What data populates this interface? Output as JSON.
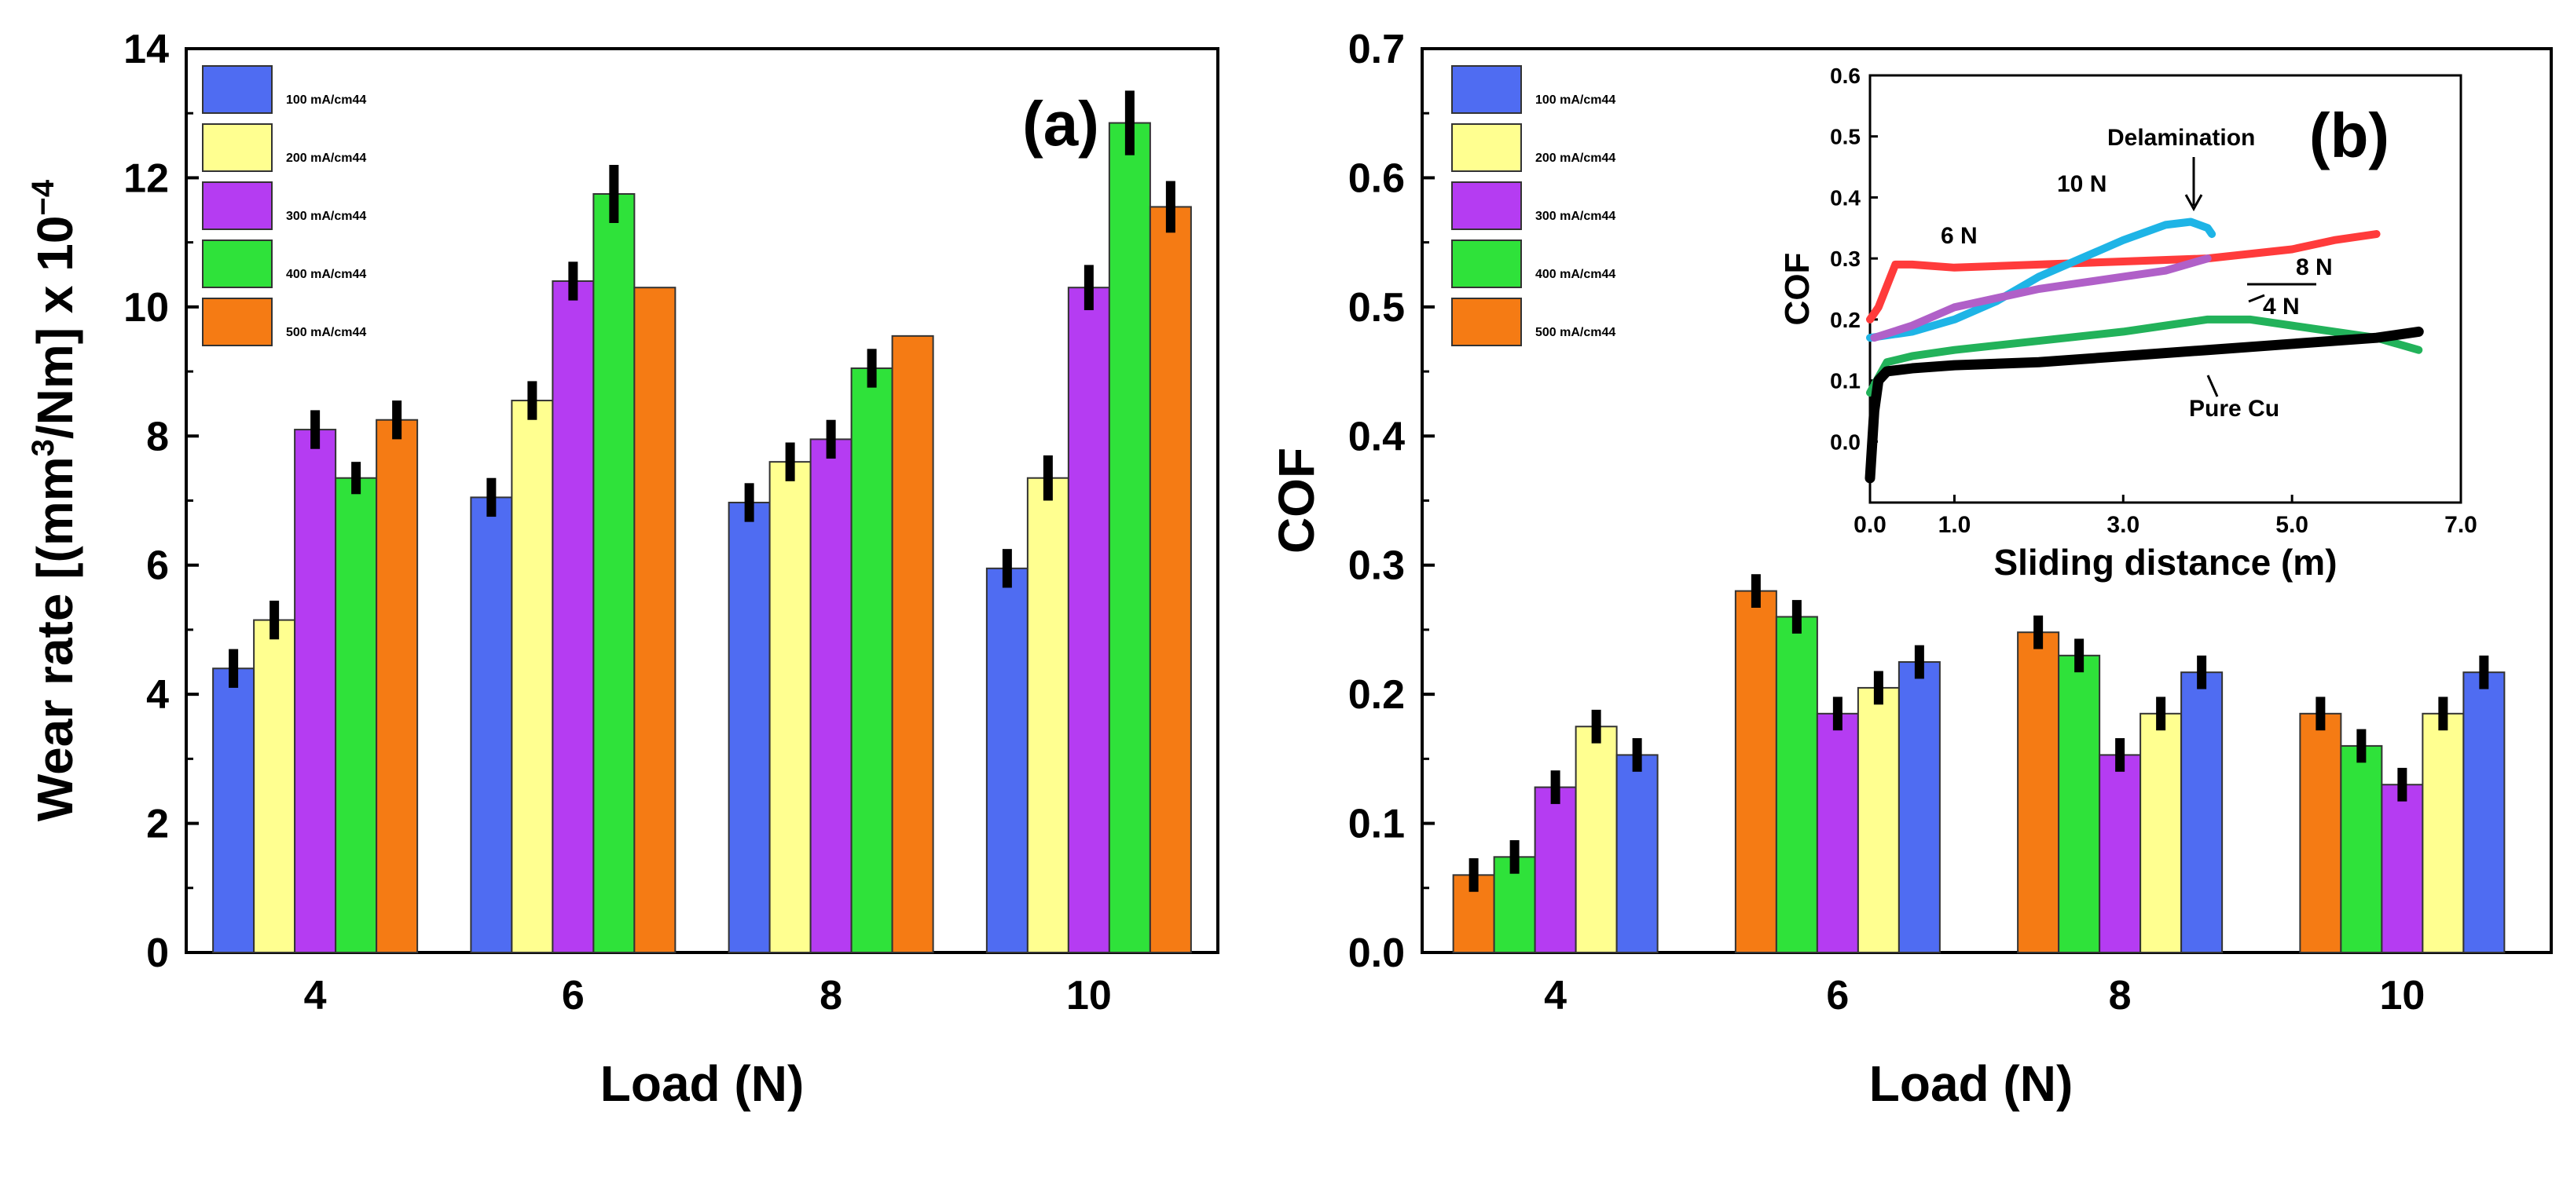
{
  "colors": {
    "100 mA/cm2": "#4f6cf2",
    "200 mA/cm2": "#ffff90",
    "300 mA/cm2": "#b53cf2",
    "400 mA/cm2": "#2fe23a",
    "500 mA/cm2": "#f57b14",
    "err": "#000000",
    "inset_6N": "#ff3b3b",
    "inset_10N": "#1eb4e6",
    "inset_8N": "#b060c8",
    "inset_4N": "#22b25a",
    "inset_pure": "#000000"
  },
  "chart_data": [
    {
      "type": "bar",
      "panel_label": "(a)",
      "xlabel": "Load (N)",
      "ylabel_main": "Wear rate [(mm",
      "ylabel_sup1": "3",
      "ylabel_mid": "/Nm] x 10",
      "ylabel_sup2": "−4",
      "categories": [
        "4",
        "6",
        "8",
        "10"
      ],
      "ylim": [
        0,
        14
      ],
      "yticks": [
        "0",
        "2",
        "4",
        "6",
        "8",
        "10",
        "12",
        "14"
      ],
      "series": [
        {
          "name": "100 mA/cm",
          "sup": "2",
          "key": "100 mA/cm2",
          "values": [
            4.4,
            7.05,
            6.97,
            5.95
          ],
          "errors": [
            0.3,
            0.3,
            0.3,
            0.3
          ]
        },
        {
          "name": "200 mA/cm",
          "sup": "2",
          "key": "200 mA/cm2",
          "values": [
            5.15,
            8.55,
            7.6,
            7.35
          ],
          "errors": [
            0.3,
            0.3,
            0.3,
            0.35
          ]
        },
        {
          "name": "300 mA/cm",
          "sup": "2",
          "key": "300 mA/cm2",
          "values": [
            8.1,
            10.4,
            7.95,
            10.3
          ],
          "errors": [
            0.3,
            0.3,
            0.3,
            0.35
          ]
        },
        {
          "name": "400 mA/cm",
          "sup": "2",
          "key": "400 mA/cm2",
          "values": [
            7.35,
            11.75,
            9.05,
            12.85
          ],
          "errors": [
            0.25,
            0.45,
            0.3,
            0.5
          ]
        },
        {
          "name": "500 mA/cm",
          "sup": "2",
          "key": "500 mA/cm2",
          "values": [
            8.25,
            10.3,
            9.55,
            11.55
          ],
          "errors": [
            0.3,
            0,
            0,
            0.4
          ]
        }
      ]
    },
    {
      "type": "bar",
      "panel_label": "(b)",
      "xlabel": "Load (N)",
      "ylabel": "COF",
      "categories": [
        "4",
        "6",
        "8",
        "10"
      ],
      "ylim": [
        0,
        0.7
      ],
      "yticks": [
        "0.0",
        "0.1",
        "0.2",
        "0.3",
        "0.4",
        "0.5",
        "0.6",
        "0.7"
      ],
      "legend": [
        {
          "name": "100 mA/cm",
          "sup": "2",
          "key": "100 mA/cm2"
        },
        {
          "name": "200 mA/cm",
          "sup": "2",
          "key": "200 mA/cm2"
        },
        {
          "name": "300 mA/cm",
          "sup": "2",
          "key": "300 mA/cm2"
        },
        {
          "name": "400 mA/cm",
          "sup": "2",
          "key": "400 mA/cm2"
        },
        {
          "name": "500 mA/cm",
          "sup": "2",
          "key": "500 mA/cm2"
        }
      ],
      "bar_order": [
        "500 mA/cm2",
        "400 mA/cm2",
        "300 mA/cm2",
        "200 mA/cm2",
        "100 mA/cm2"
      ],
      "values": {
        "500 mA/cm2": [
          0.06,
          0.28,
          0.248,
          0.185
        ],
        "400 mA/cm2": [
          0.074,
          0.26,
          0.23,
          0.16
        ],
        "300 mA/cm2": [
          0.128,
          0.185,
          0.153,
          0.13
        ],
        "200 mA/cm2": [
          0.175,
          0.205,
          0.185,
          0.185
        ],
        "100 mA/cm2": [
          0.153,
          0.225,
          0.217,
          0.217
        ]
      },
      "errors": 0.013,
      "inset": {
        "type": "line",
        "xlabel": "Sliding distance (m)",
        "ylabel": "COF",
        "xlim": [
          0,
          7
        ],
        "ylim": [
          -0.1,
          0.6
        ],
        "xticks": [
          "0.0",
          "1.0",
          "3.0",
          "5.0",
          "7.0"
        ],
        "yticks": [
          "0.0",
          "0.1",
          "0.2",
          "0.3",
          "0.4",
          "0.5",
          "0.6"
        ],
        "annotations": [
          "Delamination",
          "10 N",
          "6 N",
          "8 N",
          "4 N",
          "Pure Cu"
        ],
        "series": [
          {
            "name": "6 N",
            "key": "inset_6N",
            "x": [
              0,
              0.1,
              0.3,
              0.5,
              1.0,
              2.0,
              3.0,
              4.0,
              5.0,
              5.5,
              6.0
            ],
            "y": [
              0.2,
              0.22,
              0.29,
              0.29,
              0.285,
              0.29,
              0.295,
              0.3,
              0.315,
              0.33,
              0.34
            ]
          },
          {
            "name": "10 N",
            "key": "inset_10N",
            "x": [
              0,
              0.5,
              1.0,
              1.5,
              2.0,
              2.5,
              3.0,
              3.5,
              3.8,
              4.0,
              4.05
            ],
            "y": [
              0.17,
              0.18,
              0.2,
              0.23,
              0.27,
              0.3,
              0.33,
              0.355,
              0.36,
              0.35,
              0.34
            ]
          },
          {
            "name": "8 N",
            "key": "inset_8N",
            "x": [
              0.05,
              0.5,
              1.0,
              1.5,
              2.0,
              2.5,
              3.0,
              3.5,
              4.0
            ],
            "y": [
              0.17,
              0.19,
              0.22,
              0.235,
              0.25,
              0.26,
              0.27,
              0.28,
              0.3
            ]
          },
          {
            "name": "4 N",
            "key": "inset_4N",
            "x": [
              0,
              0.2,
              0.5,
              1.0,
              2.0,
              3.0,
              3.5,
              4.0,
              4.5,
              5.0,
              6.0,
              6.5
            ],
            "y": [
              0.08,
              0.13,
              0.14,
              0.15,
              0.165,
              0.18,
              0.19,
              0.2,
              0.2,
              0.19,
              0.17,
              0.15
            ]
          },
          {
            "name": "Pure Cu",
            "key": "inset_pure",
            "x": [
              0,
              0.05,
              0.1,
              0.2,
              0.5,
              1.0,
              2.0,
              3.0,
              4.0,
              5.0,
              6.0,
              6.5
            ],
            "y": [
              -0.06,
              0.05,
              0.1,
              0.115,
              0.12,
              0.125,
              0.13,
              0.14,
              0.15,
              0.16,
              0.17,
              0.18
            ]
          }
        ]
      }
    }
  ]
}
